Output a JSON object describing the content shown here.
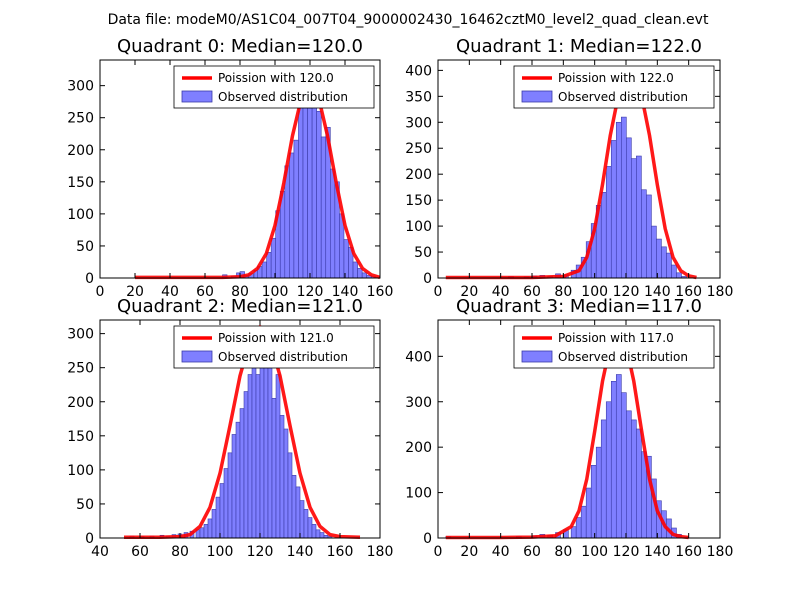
{
  "figure": {
    "suptitle": "Data file: modeM0/AS1C04_007T04_9000002430_16462cztM0_level2_quad_clean.evt"
  },
  "colors": {
    "bar_fill": "#7f7fff",
    "bar_edge": "#3a3aa8",
    "line": "#ff0000"
  },
  "chart_data": [
    {
      "type": "bar",
      "title": "Quadrant 0: Median=120.0",
      "xlim": [
        0,
        160
      ],
      "ylim": [
        0,
        340
      ],
      "xticks": [
        0,
        20,
        40,
        60,
        80,
        100,
        120,
        140,
        160
      ],
      "yticks": [
        0,
        50,
        100,
        150,
        200,
        250,
        300
      ],
      "legend": {
        "line": "Poission with 120.0",
        "bars": "Observed distribution",
        "position": "top-right"
      },
      "bin_width": 2.6,
      "bins_x": [
        70,
        75,
        78,
        80,
        82,
        85,
        88,
        90,
        92.6,
        95.2,
        97.8,
        100.4,
        103,
        105.6,
        108.2,
        110.8,
        113.4,
        116,
        118.6,
        121.2,
        123.8,
        126.4,
        129,
        131.6,
        134.2,
        136.8,
        139.4,
        142,
        144.6,
        147.2,
        149.8,
        152.4,
        155
      ],
      "bins_y": [
        5,
        3,
        8,
        10,
        4,
        7,
        12,
        18,
        25,
        40,
        62,
        105,
        135,
        175,
        195,
        215,
        270,
        305,
        265,
        320,
        260,
        220,
        235,
        170,
        150,
        100,
        60,
        48,
        25,
        15,
        8,
        4,
        2
      ],
      "line_x": [
        20,
        40,
        60,
        70,
        80,
        85,
        90,
        95,
        100,
        105,
        110,
        115,
        120,
        125,
        130,
        135,
        140,
        145,
        150,
        155,
        160
      ],
      "line_y": [
        1,
        1,
        1,
        1,
        2,
        5,
        15,
        38,
        82,
        148,
        222,
        280,
        300,
        280,
        222,
        148,
        82,
        38,
        15,
        5,
        1
      ]
    },
    {
      "type": "bar",
      "title": "Quadrant 1: Median=122.0",
      "xlim": [
        0,
        180
      ],
      "ylim": [
        0,
        420
      ],
      "xticks": [
        0,
        20,
        40,
        60,
        80,
        100,
        120,
        140,
        160,
        180
      ],
      "yticks": [
        0,
        50,
        100,
        150,
        200,
        250,
        300,
        350,
        400
      ],
      "legend": {
        "line": "Poission with 122.0",
        "bars": "Observed distribution",
        "position": "top-right"
      },
      "bin_width": 3.2,
      "bins_x": [
        45,
        55,
        60,
        65,
        70,
        75,
        80,
        85,
        88.2,
        91.4,
        94.6,
        97.8,
        101,
        104.2,
        107.4,
        110.6,
        113.8,
        117,
        120.2,
        123.4,
        126.6,
        129.8,
        133,
        136.2,
        139.4,
        142.6,
        145.8,
        149,
        152.2,
        155.4
      ],
      "bins_y": [
        3,
        2,
        4,
        5,
        3,
        8,
        6,
        15,
        25,
        40,
        70,
        105,
        140,
        165,
        215,
        265,
        300,
        310,
        270,
        230,
        235,
        170,
        160,
        100,
        75,
        60,
        48,
        25,
        10,
        3
      ],
      "line_x": [
        5,
        20,
        40,
        60,
        80,
        90,
        95,
        100,
        105,
        110,
        115,
        120,
        125,
        130,
        135,
        140,
        145,
        150,
        155,
        160,
        165
      ],
      "line_y": [
        1,
        1,
        1,
        1,
        3,
        14,
        40,
        95,
        180,
        275,
        350,
        395,
        395,
        350,
        275,
        180,
        95,
        40,
        14,
        4,
        1
      ]
    },
    {
      "type": "bar",
      "title": "Quadrant 2: Median=121.0",
      "xlim": [
        40,
        180
      ],
      "ylim": [
        0,
        320
      ],
      "xticks": [
        40,
        60,
        80,
        100,
        120,
        140,
        160,
        180
      ],
      "yticks": [
        0,
        50,
        100,
        150,
        200,
        250,
        300
      ],
      "legend": {
        "line": "Poission with 121.0",
        "bars": "Observed distribution",
        "position": "top-right"
      },
      "bin_width": 2.0,
      "bins_x": [
        55,
        60,
        65,
        70,
        73,
        76,
        79,
        82,
        85,
        88,
        90,
        92,
        94,
        96,
        98,
        100,
        102,
        104,
        106,
        108,
        110,
        112,
        114,
        116,
        118,
        120,
        122,
        124,
        126,
        128,
        130,
        132,
        134,
        136,
        138,
        140,
        142,
        144,
        146,
        148,
        150,
        152,
        154
      ],
      "bins_y": [
        3,
        2,
        3,
        4,
        3,
        5,
        6,
        8,
        10,
        12,
        15,
        20,
        28,
        42,
        60,
        80,
        102,
        125,
        152,
        170,
        190,
        215,
        240,
        265,
        240,
        295,
        252,
        260,
        205,
        240,
        180,
        160,
        125,
        92,
        75,
        55,
        42,
        30,
        20,
        12,
        8,
        4,
        2
      ],
      "line_x": [
        52,
        60,
        70,
        80,
        85,
        90,
        95,
        100,
        105,
        110,
        115,
        120,
        125,
        130,
        135,
        140,
        145,
        150,
        155,
        160,
        170
      ],
      "line_y": [
        1,
        1,
        1,
        2,
        5,
        17,
        45,
        95,
        165,
        238,
        290,
        310,
        290,
        238,
        165,
        95,
        45,
        17,
        5,
        2,
        1
      ]
    },
    {
      "type": "bar",
      "title": "Quadrant 3: Median=117.0",
      "xlim": [
        0,
        180
      ],
      "ylim": [
        0,
        480
      ],
      "xticks": [
        0,
        20,
        40,
        60,
        80,
        100,
        120,
        140,
        160,
        180
      ],
      "yticks": [
        0,
        100,
        200,
        300,
        400
      ],
      "legend": {
        "line": "Poission with 117.0",
        "bars": "Observed distribution",
        "position": "top-right"
      },
      "bin_width": 3.2,
      "bins_x": [
        5,
        50,
        60,
        65,
        70,
        75,
        80,
        85,
        88.2,
        91.4,
        94.6,
        97.8,
        101,
        104.2,
        107.4,
        110.6,
        113.8,
        117,
        120.2,
        123.4,
        126.6,
        129.8,
        133,
        136.2,
        139.4,
        142.6,
        145.8,
        149,
        152.2
      ],
      "bins_y": [
        3,
        3,
        5,
        8,
        6,
        12,
        18,
        25,
        45,
        70,
        110,
        160,
        200,
        260,
        300,
        345,
        360,
        320,
        280,
        260,
        240,
        190,
        180,
        130,
        82,
        60,
        42,
        22,
        8
      ],
      "line_x": [
        5,
        20,
        40,
        60,
        75,
        85,
        90,
        95,
        100,
        105,
        110,
        115,
        120,
        125,
        130,
        135,
        140,
        145,
        150,
        155,
        160
      ],
      "line_y": [
        1,
        1,
        1,
        2,
        5,
        25,
        60,
        130,
        235,
        345,
        425,
        450,
        425,
        345,
        235,
        130,
        60,
        25,
        8,
        3,
        1
      ]
    }
  ]
}
